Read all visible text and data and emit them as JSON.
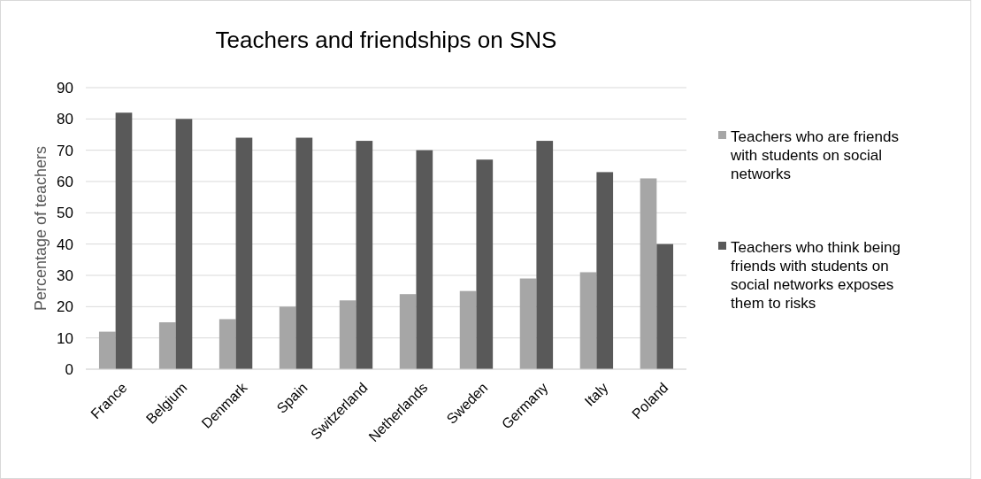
{
  "chart_data": {
    "type": "bar",
    "title": "Teachers and friendships on SNS",
    "ylabel": "Percentage of teachers",
    "categories": [
      "France",
      "Belgium",
      "Denmark",
      "Spain",
      "Switzerland",
      "Netherlands",
      "Sweden",
      "Germany",
      "Italy",
      "Poland"
    ],
    "series": [
      {
        "name": "Teachers who are friends with students on social networks",
        "color": "#a6a6a6",
        "values": [
          12,
          15,
          16,
          20,
          22,
          24,
          25,
          29,
          31,
          61
        ]
      },
      {
        "name": "Teachers who think being friends with students on social networks exposes them to risks",
        "color": "#595959",
        "values": [
          82,
          80,
          74,
          74,
          73,
          70,
          67,
          73,
          63,
          40
        ]
      }
    ],
    "ylim": [
      0,
      90
    ],
    "yticks": [
      0,
      10,
      20,
      30,
      40,
      50,
      60,
      70,
      80,
      90
    ],
    "grid": "y",
    "legend": "right"
  }
}
